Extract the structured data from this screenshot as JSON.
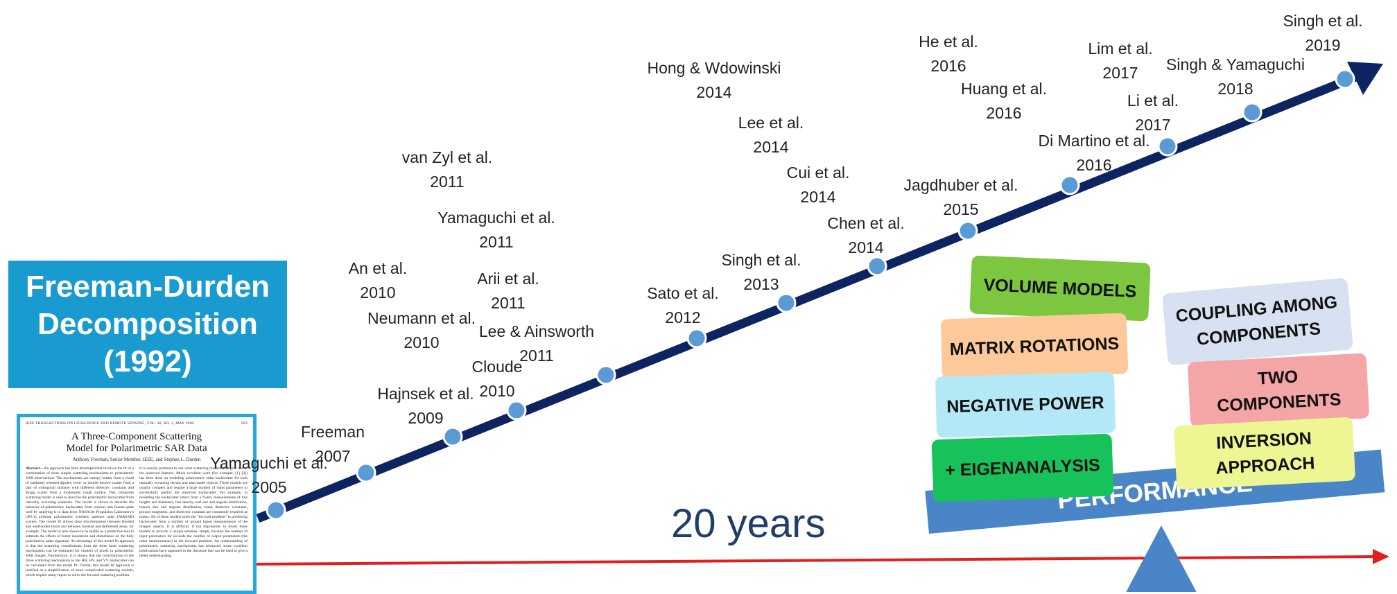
{
  "title_box": {
    "line1": "Freeman-Durden",
    "line2": "Decomposition",
    "line3": "(1992)"
  },
  "paper": {
    "header_left": "IEEE TRANSACTIONS ON GEOSCIENCE AND REMOTE SENSING, VOL. 36, NO. 3, MAY 1998",
    "header_right": "963",
    "title_line1": "A Three-Component Scattering",
    "title_line2": "Model for Polarimetric SAR Data",
    "authors": "Anthony Freeman, Senior Member, IEEE, and Stephen L. Durden",
    "abstract_lead": "Abstract—",
    "abstract_text": "An approach has been developed that involves the fit of a combination of three simple scattering mechanisms to polarimetric SAR observations. The mechanisms are canopy scatter from a cloud of randomly oriented dipoles, even- or double-bounce scatter from a pair of orthogonal surfaces with different dielectric constants and Bragg scatter from a moderately rough surface. This composite scattering model is used to describe the polarimetric backscatter from naturally occurring scatterers. The model is shown to describe the behavior of polarimetric backscatter from tropical rain forests quite well by applying it to data from NASA/Jet Propulsion Laboratory's (JPL's) airborne polarimetric synthetic aperture radar (AIRSAR) system. The model fit allows clear discrimination between flooded and nonflooded forest and between forested and deforested areas, for example. The model is also shown to be usable as a predictive tool to estimate the effects of forest inundation and disturbance on the fully polarimetric radar signature. An advantage of this model fit approach is that the scattering contributions from the three basic scattering mechanisms can be estimated for clusters of pixels in polarimetric SAR images. Furthermore, it is shown that the contributions of the three scattering mechanisms to the HH, HV, and VV backscatter can be calculated from the model fit. Finally, this model fit approach is justified as a simplification of more complicated scattering models, which require many inputs to solve the forward scattering problem.",
    "col2_text": "It is usually pertinent to ask what scattering mechanisms give rise to the observed features. Much excellent work (for example, [1]–[3]) has been done on modeling polarimetric radar backscatter for both naturally occurring terrain and man-made objects. These models are usually complex and require a large number of input parameters to successfully predict the observed backscatter. For example, in modeling the backscatter return from a forest, measurements of tree heights and diameters, tree density, leaf size and angular distribution, branch size and angular distribution, trunk dielectric constants, ground roughness, and dielectric constant are commonly required as inputs. All of these models solve the “forward problem” in predicting backscatter from a number of ground based measurements of the imaged objects. It is difficult, if not impossible, to invert these models to provide a unique solution, simply because the number of input parameters far exceeds the number of output parameters (the radar measurements) in the forward problem. An understanding of polarimetric scattering mechanisms has advanced, some excellent publications have appeared in the literature that can be used to give a better understanding."
  },
  "timeline_labels": [
    {
      "l1": "Yamaguchi et al.",
      "l2": "2005"
    },
    {
      "l1": "Freeman",
      "l2": "2007"
    },
    {
      "l1": "Hajnsek et al.",
      "l2": "2009"
    },
    {
      "l1": "Cloude",
      "l2": "2010"
    },
    {
      "l1": "Neumann et al.",
      "l2": "2010"
    },
    {
      "l1": "An et al.",
      "l2": "2010"
    },
    {
      "l1": "Lee & Ainsworth",
      "l2": "2011"
    },
    {
      "l1": "Arii et al.",
      "l2": "2011"
    },
    {
      "l1": "Yamaguchi et al.",
      "l2": "2011"
    },
    {
      "l1": "van Zyl et al.",
      "l2": "2011"
    },
    {
      "l1": "Sato et al.",
      "l2": "2012"
    },
    {
      "l1": "Singh et al.",
      "l2": "2013"
    },
    {
      "l1": "Chen et al.",
      "l2": "2014"
    },
    {
      "l1": "Cui et al.",
      "l2": "2014"
    },
    {
      "l1": "Lee et al.",
      "l2": "2014"
    },
    {
      "l1": "Hong & Wdowinski",
      "l2": "2014"
    },
    {
      "l1": "Jagdhuber et al.",
      "l2": "2015"
    },
    {
      "l1": "Di Martino et al.",
      "l2": "2016"
    },
    {
      "l1": "Huang et al.",
      "l2": "2016"
    },
    {
      "l1": "He et al.",
      "l2": "2016"
    },
    {
      "l1": "Li et al.",
      "l2": "2017"
    },
    {
      "l1": "Lim et al.",
      "l2": "2017"
    },
    {
      "l1": "Singh & Yamaguchi",
      "l2": "2018"
    },
    {
      "l1": "Singh et al.",
      "l2": "2019"
    }
  ],
  "span_label": "20 years",
  "performance_label": "PERFORMANCE",
  "left_blocks": [
    {
      "label": "VOLUME MODELS"
    },
    {
      "label": "MATRIX ROTATIONS"
    },
    {
      "label": "NEGATIVE POWER"
    },
    {
      "label": "+ EIGENANALYSIS"
    }
  ],
  "right_blocks": [
    {
      "l1": "COUPLING AMONG",
      "l2": "COMPONENTS"
    },
    {
      "l1": "TWO",
      "l2": "COMPONENTS"
    },
    {
      "l1": "INVERSION",
      "l2": "APPROACH"
    }
  ],
  "colors": {
    "timeline": "#0d2461",
    "marker": "#5b9bd5",
    "title_box": "#1a9bd0",
    "red_arrow": "#e01f1f",
    "fulcrum": "#4a86c7",
    "volume": "#7dc63f",
    "matrix": "#fbc99a",
    "negative": "#b4e8f6",
    "eigen": "#18c25a",
    "coupling": "#d7e1f1",
    "two": "#f4a5a5",
    "inversion": "#eef593"
  }
}
